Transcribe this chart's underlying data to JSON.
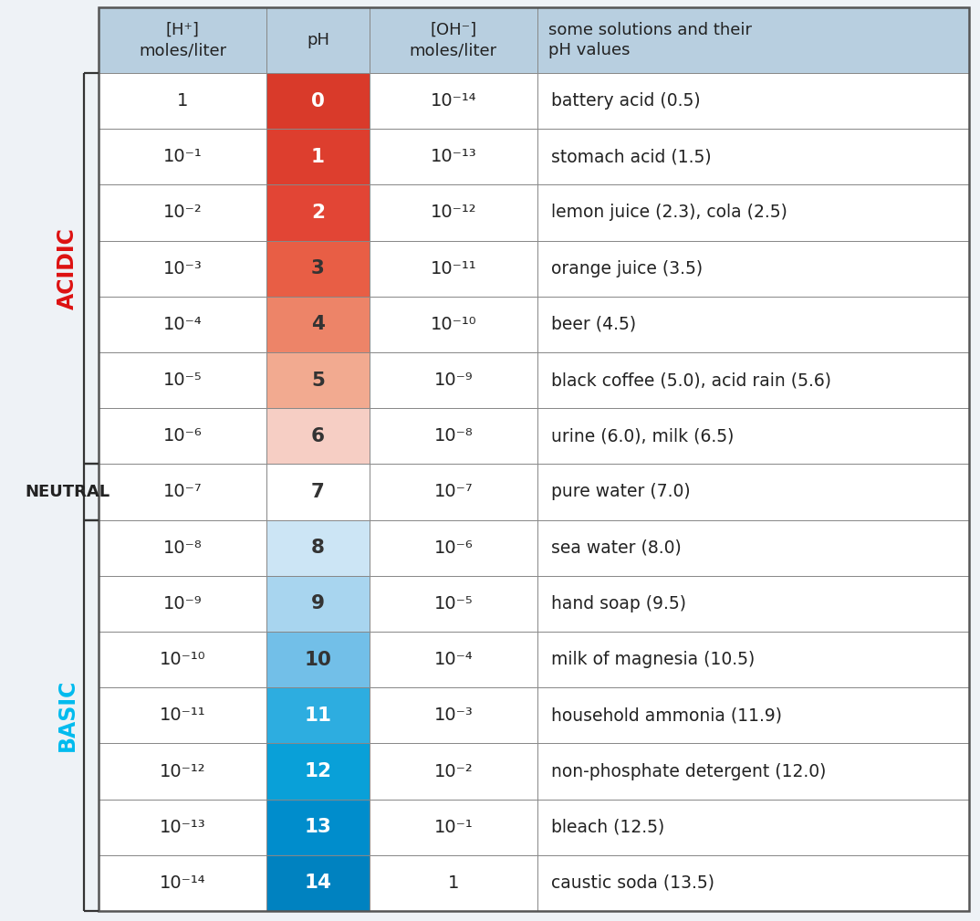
{
  "header_col1": "[H⁺]\nmoles/liter",
  "header_col2": "pH",
  "header_col3": "[OH⁻]\nmoles/liter",
  "header_col4": "some solutions and their\npH values",
  "rows": [
    {
      "h_conc": "1",
      "ph": "0",
      "oh_conc": "10⁻¹⁴",
      "solution": "battery acid (0.5)"
    },
    {
      "h_conc": "10⁻¹",
      "ph": "1",
      "oh_conc": "10⁻¹³",
      "solution": "stomach acid (1.5)"
    },
    {
      "h_conc": "10⁻²",
      "ph": "2",
      "oh_conc": "10⁻¹²",
      "solution": "lemon juice (2.3), cola (2.5)"
    },
    {
      "h_conc": "10⁻³",
      "ph": "3",
      "oh_conc": "10⁻¹¹",
      "solution": "orange juice (3.5)"
    },
    {
      "h_conc": "10⁻⁴",
      "ph": "4",
      "oh_conc": "10⁻¹⁰",
      "solution": "beer (4.5)"
    },
    {
      "h_conc": "10⁻⁵",
      "ph": "5",
      "oh_conc": "10⁻⁹",
      "solution": "black coffee (5.0), acid rain (5.6)"
    },
    {
      "h_conc": "10⁻⁶",
      "ph": "6",
      "oh_conc": "10⁻⁸",
      "solution": "urine (6.0), milk (6.5)"
    },
    {
      "h_conc": "10⁻⁷",
      "ph": "7",
      "oh_conc": "10⁻⁷",
      "solution": "pure water (7.0)"
    },
    {
      "h_conc": "10⁻⁸",
      "ph": "8",
      "oh_conc": "10⁻⁶",
      "solution": "sea water (8.0)"
    },
    {
      "h_conc": "10⁻⁹",
      "ph": "9",
      "oh_conc": "10⁻⁵",
      "solution": "hand soap (9.5)"
    },
    {
      "h_conc": "10⁻¹⁰",
      "ph": "10",
      "oh_conc": "10⁻⁴",
      "solution": "milk of magnesia (10.5)"
    },
    {
      "h_conc": "10⁻¹¹",
      "ph": "11",
      "oh_conc": "10⁻³",
      "solution": "household ammonia (11.9)"
    },
    {
      "h_conc": "10⁻¹²",
      "ph": "12",
      "oh_conc": "10⁻²",
      "solution": "non-phosphate detergent (12.0)"
    },
    {
      "h_conc": "10⁻¹³",
      "ph": "13",
      "oh_conc": "10⁻¹",
      "solution": "bleach (12.5)"
    },
    {
      "h_conc": "10⁻¹⁴",
      "ph": "14",
      "oh_conc": "1",
      "solution": "caustic soda (13.5)"
    }
  ],
  "ph_colors": [
    "#d93a2a",
    "#dd3e2e",
    "#e24535",
    "#e85e45",
    "#ed8468",
    "#f2aa90",
    "#f6cec4",
    "#ffffff",
    "#cce5f5",
    "#a8d5ef",
    "#72bfe8",
    "#2dade0",
    "#09a0d8",
    "#008dcc",
    "#0082c0"
  ],
  "ph_text_colors": [
    "#ffffff",
    "#ffffff",
    "#ffffff",
    "#333333",
    "#333333",
    "#333333",
    "#333333",
    "#333333",
    "#333333",
    "#333333",
    "#333333",
    "#ffffff",
    "#ffffff",
    "#ffffff",
    "#ffffff"
  ],
  "header_bg": "#b8cfe0",
  "bg_color": "#eef2f6",
  "acidic_color": "#dd1111",
  "neutral_color": "#222222",
  "basic_color": "#00bbee",
  "border_color": "#888888",
  "text_dark": "#222222"
}
